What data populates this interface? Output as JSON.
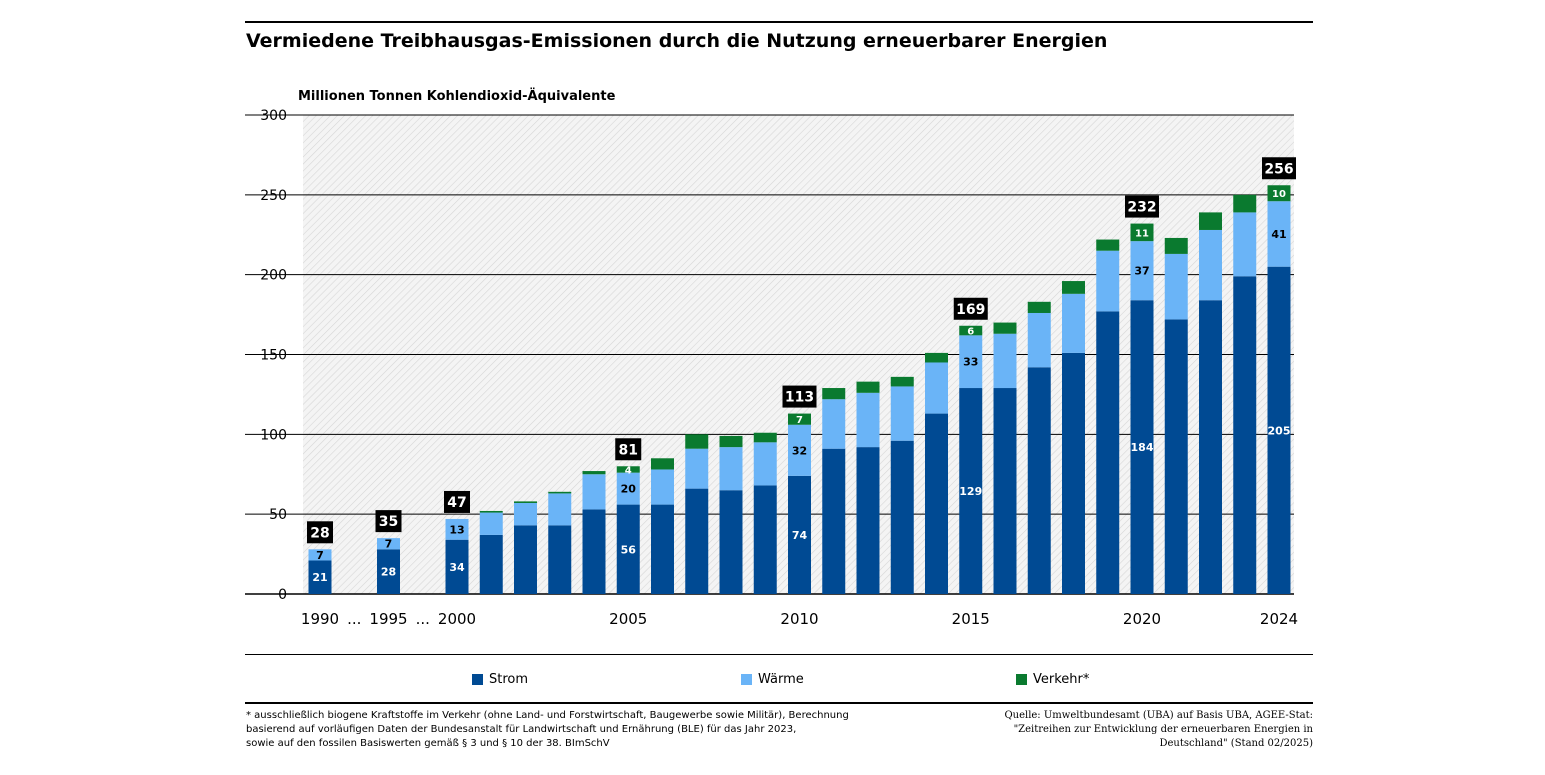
{
  "title": "Vermiedene Treibhausgas-Emissionen durch die Nutzung erneuerbarer Energien",
  "colors": {
    "strom": "#004a93",
    "waerme": "#6ab4f7",
    "verkehr": "#0a7a2f",
    "total_box": "#000000"
  },
  "chart_data": {
    "type": "bar",
    "stacked": true,
    "ylabel": "Millionen Tonnen Kohlendioxid-Äquivalente",
    "ylim": [
      0,
      300
    ],
    "yticks": [
      0,
      50,
      100,
      150,
      200,
      250,
      300
    ],
    "x_tick_labels": [
      "1990",
      "...",
      "1995",
      "...",
      "2000",
      "2005",
      "2010",
      "2015",
      "2020",
      "2024"
    ],
    "categories": [
      "1990",
      "1995",
      "2000",
      "2001",
      "2002",
      "2003",
      "2004",
      "2005",
      "2006",
      "2007",
      "2008",
      "2009",
      "2010",
      "2011",
      "2012",
      "2013",
      "2014",
      "2015",
      "2016",
      "2017",
      "2018",
      "2019",
      "2020",
      "2021",
      "2022",
      "2023",
      "2024"
    ],
    "series": [
      {
        "name": "Strom",
        "values": [
          21,
          28,
          34,
          37,
          43,
          43,
          53,
          56,
          56,
          66,
          65,
          68,
          74,
          91,
          92,
          96,
          113,
          129,
          129,
          142,
          151,
          177,
          184,
          172,
          184,
          199,
          205
        ]
      },
      {
        "name": "Wärme",
        "values": [
          7,
          7,
          13,
          14,
          14,
          20,
          22,
          20,
          22,
          25,
          27,
          27,
          32,
          31,
          34,
          34,
          32,
          33,
          34,
          34,
          37,
          38,
          37,
          41,
          44,
          40,
          41
        ]
      },
      {
        "name": "Verkehr*",
        "values": [
          0,
          0,
          0,
          1,
          1,
          1,
          2,
          4,
          7,
          9,
          7,
          6,
          7,
          7,
          7,
          6,
          6,
          6,
          7,
          7,
          8,
          7,
          11,
          10,
          11,
          11,
          10
        ]
      }
    ],
    "bar_labels": [
      {
        "category": "1990",
        "strom": "21",
        "waerme": "7",
        "verkehr": "",
        "total": "28"
      },
      {
        "category": "1995",
        "strom": "28",
        "waerme": "7",
        "verkehr": "",
        "total": "35"
      },
      {
        "category": "2000",
        "strom": "34",
        "waerme": "13",
        "verkehr": "",
        "total": "47"
      },
      {
        "category": "2005",
        "strom": "56",
        "waerme": "20",
        "verkehr": "4",
        "total": "81"
      },
      {
        "category": "2010",
        "strom": "74",
        "waerme": "32",
        "verkehr": "7",
        "total": "113"
      },
      {
        "category": "2015",
        "strom": "129",
        "waerme": "33",
        "verkehr": "6",
        "total": "169"
      },
      {
        "category": "2020",
        "strom": "184",
        "waerme": "37",
        "verkehr": "11",
        "total": "232"
      },
      {
        "category": "2024",
        "strom": "205",
        "waerme": "41",
        "verkehr": "10",
        "total": "256"
      }
    ]
  },
  "legend": {
    "strom": "Strom",
    "waerme": "Wärme",
    "verkehr": "Verkehr*"
  },
  "footnote": {
    "line1": "* ausschließlich biogene Kraftstoffe im Verkehr (ohne Land- und Forstwirtschaft, Baugewerbe sowie Militär), Berechnung",
    "line2": "basierend auf vorläufigen Daten der Bundesanstalt für Landwirtschaft und Ernährung (BLE) für das Jahr 2023,",
    "line3": "sowie auf den fossilen Basiswerten gemäß § 3 und § 10 der 38. BImSchV"
  },
  "source": {
    "line1": "Quelle: Umweltbundesamt (UBA) auf Basis UBA, AGEE-Stat:",
    "line2": "\"Zeitreihen zur Entwicklung der erneuerbaren Energien in",
    "line3": "Deutschland\" (Stand 02/2025)"
  }
}
